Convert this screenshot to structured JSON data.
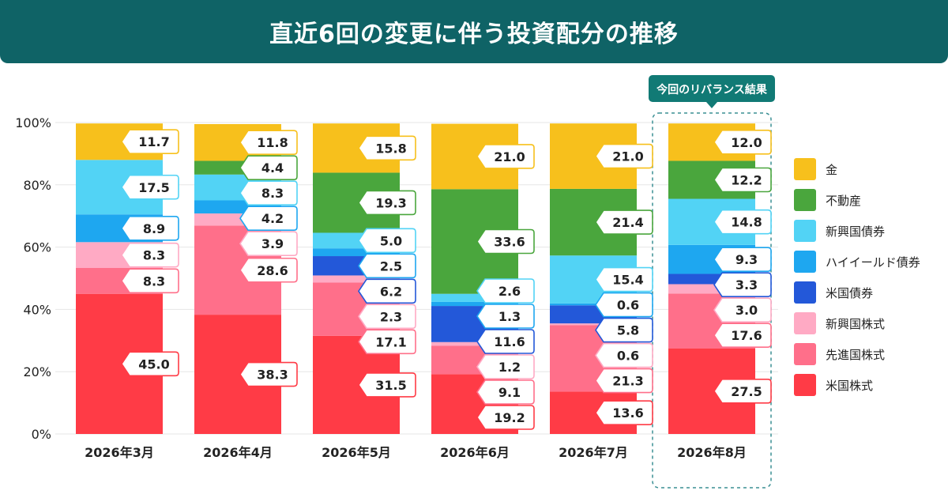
{
  "title": "直近6回の変更に伴う投資配分の推移",
  "callout": "今回のリバランス結果",
  "colors": {
    "title_bg": "#0f6366",
    "callout_bg": "#117a75",
    "grid": "#e6e6e6",
    "axis_text": "#222222"
  },
  "legend_position": "right",
  "chart_data": {
    "type": "bar",
    "stacked": true,
    "normalized_percent": true,
    "categories": [
      "2026年3月",
      "2026年4月",
      "2026年5月",
      "2026年6月",
      "2026年7月",
      "2026年8月"
    ],
    "highlight_category": "2026年8月",
    "ylim": [
      0,
      100
    ],
    "yticks": [
      "0%",
      "20%",
      "40%",
      "60%",
      "80%",
      "100%"
    ],
    "grid": true,
    "series": [
      {
        "name": "米国株式",
        "color": "#ff3b46",
        "values": [
          45.0,
          38.3,
          31.5,
          19.2,
          13.6,
          27.5
        ]
      },
      {
        "name": "先進国株式",
        "color": "#ff6f8a",
        "values": [
          8.3,
          28.6,
          17.1,
          9.1,
          21.3,
          17.6
        ]
      },
      {
        "name": "新興国株式",
        "color": "#ffaac4",
        "values": [
          8.3,
          3.9,
          2.3,
          1.2,
          0.6,
          3.0
        ]
      },
      {
        "name": "米国債券",
        "color": "#2358d9",
        "values": [
          0,
          0,
          6.2,
          11.6,
          5.8,
          3.3
        ]
      },
      {
        "name": "ハイイールド債券",
        "color": "#1ea7f0",
        "values": [
          8.9,
          4.2,
          2.5,
          1.3,
          0.6,
          9.3
        ]
      },
      {
        "name": "新興国債券",
        "color": "#52d3f5",
        "values": [
          17.5,
          8.3,
          5.0,
          2.6,
          15.4,
          14.8
        ]
      },
      {
        "name": "不動産",
        "color": "#4aa63d",
        "values": [
          0,
          4.4,
          19.3,
          33.6,
          21.4,
          12.2
        ]
      },
      {
        "name": "金",
        "color": "#f7c01c",
        "values": [
          11.7,
          11.8,
          15.8,
          21.0,
          21.0,
          12.0
        ]
      }
    ],
    "legend": [
      "金",
      "不動産",
      "新興国債券",
      "ハイイールド債券",
      "米国債券",
      "新興国株式",
      "先進国株式",
      "米国株式"
    ]
  }
}
